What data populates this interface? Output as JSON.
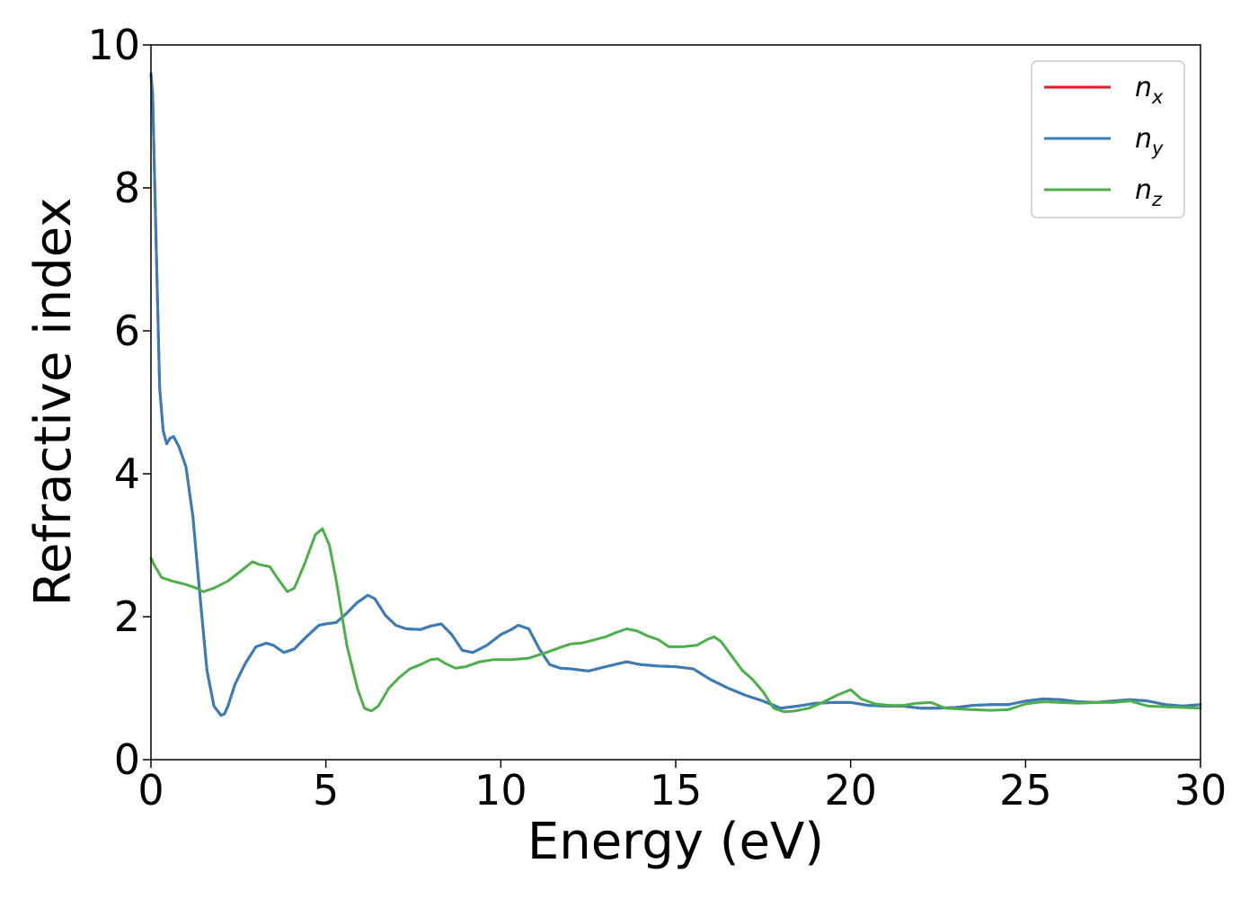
{
  "chart_data": {
    "type": "line",
    "title": "",
    "xlabel": "Energy (eV)",
    "ylabel": "Refractive index",
    "xlim": [
      0,
      30
    ],
    "ylim": [
      0,
      10
    ],
    "xticks": [
      0,
      5,
      10,
      15,
      20,
      25,
      30
    ],
    "yticks": [
      0,
      2,
      4,
      6,
      8,
      10
    ],
    "grid": false,
    "legend_position": "top-right",
    "series": [
      {
        "name": "n_x",
        "label_base": "n",
        "label_sub": "x",
        "color": "#e41a1c",
        "x": [
          0,
          0.05,
          0.15,
          0.25,
          0.35,
          0.45,
          0.55,
          0.65,
          0.8,
          1.0,
          1.2,
          1.4,
          1.6,
          1.8,
          2.0,
          2.1,
          2.2,
          2.4,
          2.7,
          3.0,
          3.3,
          3.5,
          3.8,
          4.1,
          4.4,
          4.8,
          5.0,
          5.3,
          5.6,
          5.9,
          6.2,
          6.4,
          6.7,
          7.0,
          7.3,
          7.7,
          8.0,
          8.3,
          8.6,
          8.9,
          9.2,
          9.6,
          10.0,
          10.3,
          10.5,
          10.8,
          11.1,
          11.4,
          11.7,
          12.0,
          12.5,
          13.0,
          13.6,
          14.0,
          14.5,
          15.0,
          15.5,
          16.0,
          16.5,
          17.0,
          17.5,
          18.0,
          18.5,
          19.0,
          19.5,
          20.0,
          20.5,
          21.0,
          21.5,
          22.0,
          22.5,
          23.0,
          23.5,
          24.0,
          24.5,
          25.0,
          25.5,
          26.0,
          26.5,
          27.0,
          27.5,
          28.0,
          28.5,
          29.0,
          29.5,
          30.0
        ],
        "y": [
          9.6,
          9.3,
          7.2,
          5.2,
          4.6,
          4.42,
          4.5,
          4.52,
          4.38,
          4.1,
          3.4,
          2.3,
          1.25,
          0.75,
          0.62,
          0.64,
          0.75,
          1.05,
          1.35,
          1.58,
          1.63,
          1.6,
          1.5,
          1.55,
          1.7,
          1.88,
          1.9,
          1.92,
          2.05,
          2.2,
          2.3,
          2.25,
          2.02,
          1.88,
          1.83,
          1.82,
          1.87,
          1.9,
          1.75,
          1.53,
          1.5,
          1.6,
          1.75,
          1.82,
          1.88,
          1.83,
          1.55,
          1.33,
          1.28,
          1.27,
          1.24,
          1.3,
          1.37,
          1.33,
          1.31,
          1.3,
          1.27,
          1.12,
          1.0,
          0.9,
          0.82,
          0.72,
          0.75,
          0.79,
          0.8,
          0.8,
          0.76,
          0.75,
          0.75,
          0.72,
          0.72,
          0.73,
          0.76,
          0.77,
          0.77,
          0.82,
          0.85,
          0.84,
          0.81,
          0.8,
          0.82,
          0.84,
          0.82,
          0.77,
          0.75,
          0.77
        ]
      },
      {
        "name": "n_y",
        "label_base": "n",
        "label_sub": "y",
        "color": "#377eb8",
        "x": [
          0,
          0.05,
          0.15,
          0.25,
          0.35,
          0.45,
          0.55,
          0.65,
          0.8,
          1.0,
          1.2,
          1.4,
          1.6,
          1.8,
          2.0,
          2.1,
          2.2,
          2.4,
          2.7,
          3.0,
          3.3,
          3.5,
          3.8,
          4.1,
          4.4,
          4.8,
          5.0,
          5.3,
          5.6,
          5.9,
          6.2,
          6.4,
          6.7,
          7.0,
          7.3,
          7.7,
          8.0,
          8.3,
          8.6,
          8.9,
          9.2,
          9.6,
          10.0,
          10.3,
          10.5,
          10.8,
          11.1,
          11.4,
          11.7,
          12.0,
          12.5,
          13.0,
          13.6,
          14.0,
          14.5,
          15.0,
          15.5,
          16.0,
          16.5,
          17.0,
          17.5,
          18.0,
          18.5,
          19.0,
          19.5,
          20.0,
          20.5,
          21.0,
          21.5,
          22.0,
          22.5,
          23.0,
          23.5,
          24.0,
          24.5,
          25.0,
          25.5,
          26.0,
          26.5,
          27.0,
          27.5,
          28.0,
          28.5,
          29.0,
          29.5,
          30.0
        ],
        "y": [
          9.6,
          9.3,
          7.2,
          5.2,
          4.6,
          4.42,
          4.5,
          4.52,
          4.38,
          4.1,
          3.4,
          2.3,
          1.25,
          0.75,
          0.62,
          0.64,
          0.75,
          1.05,
          1.35,
          1.58,
          1.63,
          1.6,
          1.5,
          1.55,
          1.7,
          1.88,
          1.9,
          1.92,
          2.05,
          2.2,
          2.3,
          2.25,
          2.02,
          1.88,
          1.83,
          1.82,
          1.87,
          1.9,
          1.75,
          1.53,
          1.5,
          1.6,
          1.75,
          1.82,
          1.88,
          1.83,
          1.55,
          1.33,
          1.28,
          1.27,
          1.24,
          1.3,
          1.37,
          1.33,
          1.31,
          1.3,
          1.27,
          1.12,
          1.0,
          0.9,
          0.82,
          0.72,
          0.75,
          0.79,
          0.8,
          0.8,
          0.76,
          0.75,
          0.75,
          0.72,
          0.72,
          0.73,
          0.76,
          0.77,
          0.77,
          0.82,
          0.85,
          0.84,
          0.81,
          0.8,
          0.82,
          0.84,
          0.82,
          0.77,
          0.75,
          0.77
        ]
      },
      {
        "name": "n_z",
        "label_base": "n",
        "label_sub": "z",
        "color": "#4daf4a",
        "x": [
          0,
          0.1,
          0.3,
          0.6,
          1.0,
          1.3,
          1.5,
          1.8,
          2.2,
          2.6,
          2.9,
          3.1,
          3.4,
          3.6,
          3.9,
          4.1,
          4.4,
          4.7,
          4.9,
          5.1,
          5.3,
          5.6,
          5.9,
          6.1,
          6.3,
          6.5,
          6.8,
          7.1,
          7.4,
          7.7,
          8.0,
          8.2,
          8.4,
          8.7,
          9.0,
          9.4,
          9.8,
          10.3,
          10.8,
          11.3,
          11.7,
          12.0,
          12.3,
          12.7,
          13.0,
          13.3,
          13.6,
          13.9,
          14.2,
          14.5,
          14.8,
          15.2,
          15.6,
          15.9,
          16.1,
          16.3,
          16.6,
          16.9,
          17.2,
          17.5,
          17.8,
          18.1,
          18.4,
          18.8,
          19.2,
          19.6,
          20.0,
          20.3,
          20.7,
          21.1,
          21.5,
          21.9,
          22.3,
          22.7,
          23.1,
          23.5,
          24.0,
          24.5,
          25.0,
          25.5,
          26.0,
          26.5,
          27.0,
          27.5,
          28.0,
          28.5,
          29.0,
          29.5,
          30.0
        ],
        "y": [
          2.82,
          2.72,
          2.55,
          2.5,
          2.45,
          2.4,
          2.35,
          2.4,
          2.5,
          2.65,
          2.77,
          2.73,
          2.7,
          2.55,
          2.35,
          2.4,
          2.75,
          3.15,
          3.23,
          3.0,
          2.5,
          1.6,
          1.0,
          0.72,
          0.68,
          0.75,
          1.0,
          1.15,
          1.27,
          1.33,
          1.4,
          1.41,
          1.35,
          1.28,
          1.3,
          1.37,
          1.4,
          1.4,
          1.42,
          1.5,
          1.57,
          1.62,
          1.63,
          1.68,
          1.72,
          1.78,
          1.83,
          1.8,
          1.73,
          1.68,
          1.58,
          1.58,
          1.6,
          1.68,
          1.72,
          1.65,
          1.45,
          1.25,
          1.12,
          0.95,
          0.72,
          0.67,
          0.68,
          0.72,
          0.8,
          0.9,
          0.98,
          0.85,
          0.78,
          0.76,
          0.76,
          0.79,
          0.8,
          0.72,
          0.71,
          0.7,
          0.69,
          0.7,
          0.78,
          0.81,
          0.8,
          0.79,
          0.8,
          0.8,
          0.82,
          0.75,
          0.74,
          0.73,
          0.72
        ]
      }
    ]
  }
}
